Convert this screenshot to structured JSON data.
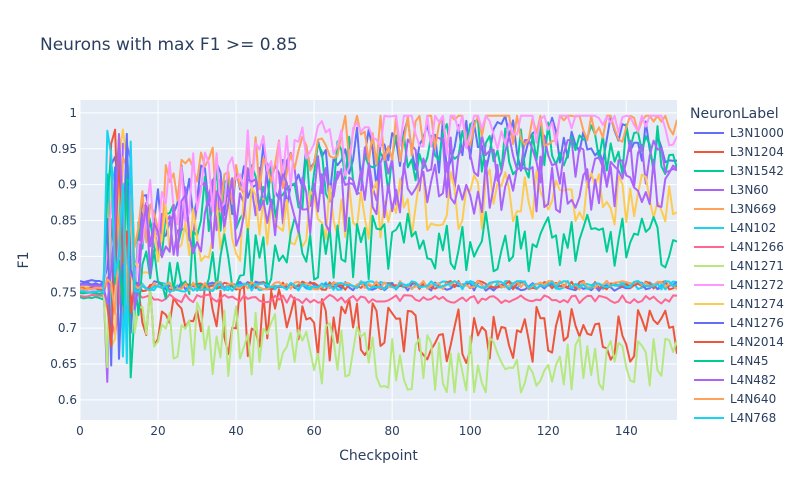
{
  "chart_data": {
    "type": "line",
    "title": "Neurons with max F1 >= 0.85",
    "xlabel": "Checkpoint",
    "ylabel": "F1",
    "xlim": [
      0,
      153
    ],
    "ylim": [
      0.572,
      1.018
    ],
    "x_ticks": [
      0,
      20,
      40,
      60,
      80,
      100,
      120,
      140
    ],
    "y_ticks": [
      0.6,
      0.65,
      0.7,
      0.75,
      0.8,
      0.85,
      0.9,
      0.95,
      1
    ],
    "y_tick_labels": [
      "0.6",
      "0.65",
      "0.7",
      "0.75",
      "0.8",
      "0.85",
      "0.9",
      "0.95",
      "1"
    ],
    "grid": true,
    "legend_title": "NeuronLabel",
    "legend_position": "right",
    "series": [
      {
        "name": "L3N1000",
        "color": "#636efa",
        "start": 0.765,
        "end": 0.96
      },
      {
        "name": "L3N1204",
        "color": "#ef553b",
        "start": 0.758,
        "end": 0.69
      },
      {
        "name": "L3N1542",
        "color": "#00cc96",
        "start": 0.742,
        "end": 0.95
      },
      {
        "name": "L3N60",
        "color": "#ab63fa",
        "start": 0.76,
        "end": 0.93
      },
      {
        "name": "L3N669",
        "color": "#ffa15a",
        "start": 0.75,
        "end": 0.995
      },
      {
        "name": "L4N102",
        "color": "#19d3f3",
        "start": 0.755,
        "end": 0.76
      },
      {
        "name": "L4N1266",
        "color": "#ff6692",
        "start": 0.745,
        "end": 0.74
      },
      {
        "name": "L4N1271",
        "color": "#b6e880",
        "start": 0.76,
        "end": 0.65
      },
      {
        "name": "L4N1272",
        "color": "#ff97ff",
        "start": 0.752,
        "end": 0.99
      },
      {
        "name": "L4N1274",
        "color": "#fecb52",
        "start": 0.758,
        "end": 0.88
      },
      {
        "name": "L4N1276",
        "color": "#636efa",
        "start": 0.762,
        "end": 0.758
      },
      {
        "name": "L4N2014",
        "color": "#ef553b",
        "start": 0.755,
        "end": 0.76
      },
      {
        "name": "L4N45",
        "color": "#00cc96",
        "start": 0.748,
        "end": 0.82
      },
      {
        "name": "L4N482",
        "color": "#ab63fa",
        "start": 0.76,
        "end": 0.9
      },
      {
        "name": "L4N640",
        "color": "#ffa15a",
        "start": 0.755,
        "end": 0.76
      },
      {
        "name": "L4N768",
        "color": "#19d3f3",
        "start": 0.75,
        "end": 0.76
      }
    ]
  }
}
